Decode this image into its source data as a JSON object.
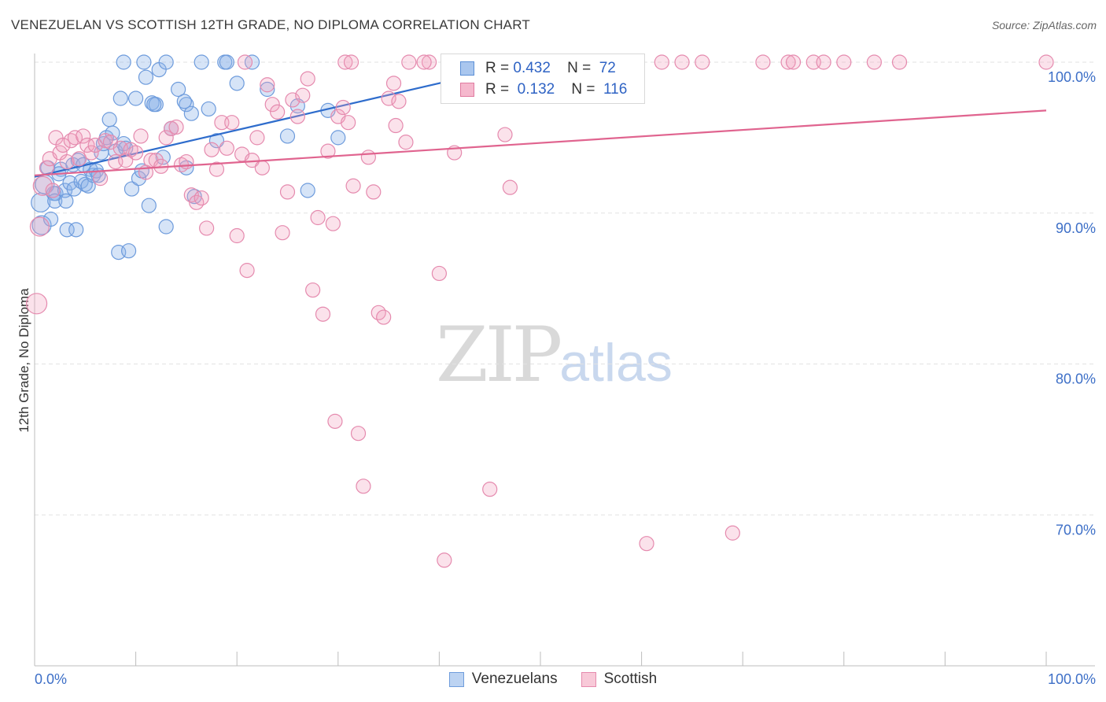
{
  "title": "VENEZUELAN VS SCOTTISH 12TH GRADE, NO DIPLOMA CORRELATION CHART",
  "source": "Source: ZipAtlas.com",
  "watermark": {
    "zip": "ZIP",
    "atlas": "atlas"
  },
  "legend": {
    "venezuelans": {
      "r_label": "R =",
      "r_value": "0.432",
      "n_label": "N =",
      "n_value": "72"
    },
    "scottish": {
      "r_label": "R =",
      "r_value": "0.132",
      "n_label": "N =",
      "n_value": "116"
    }
  },
  "bottom_legend": [
    "Venezuelans",
    "Scottish"
  ],
  "colors": {
    "blue": "#5b8fd6",
    "blue_fill": "#a9c6ee",
    "pink": "#e07aa0",
    "pink_fill": "#f5b8cd",
    "axis_text": "#3d6fc7"
  },
  "chart_data": {
    "type": "scatter",
    "xlabel": "",
    "ylabel": "12th Grade, No Diploma",
    "x_tick_labels": [
      "0.0%",
      "100.0%"
    ],
    "y_tick_labels": [
      "100.0%",
      "90.0%",
      "80.0%",
      "70.0%"
    ],
    "xlim": [
      0,
      100
    ],
    "ylim": [
      60,
      100
    ],
    "series": [
      {
        "name": "Venezuelans",
        "points": [
          [
            0.6,
            90.7
          ],
          [
            0.7,
            89.2
          ],
          [
            1.0,
            91.9
          ],
          [
            1.3,
            93.0
          ],
          [
            1.6,
            89.6
          ],
          [
            1.9,
            91.3
          ],
          [
            2.1,
            91.3
          ],
          [
            2.0,
            90.8
          ],
          [
            2.6,
            92.9
          ],
          [
            2.4,
            92.6
          ],
          [
            3.0,
            91.5
          ],
          [
            3.1,
            90.8
          ],
          [
            3.2,
            88.9
          ],
          [
            3.5,
            92.0
          ],
          [
            3.8,
            93.2
          ],
          [
            3.9,
            91.6
          ],
          [
            4.1,
            88.9
          ],
          [
            4.3,
            93.5
          ],
          [
            4.6,
            92.1
          ],
          [
            4.8,
            93.2
          ],
          [
            5.0,
            91.9
          ],
          [
            5.3,
            91.8
          ],
          [
            5.5,
            92.9
          ],
          [
            5.8,
            92.5
          ],
          [
            6.1,
            92.8
          ],
          [
            6.3,
            92.5
          ],
          [
            6.6,
            94.0
          ],
          [
            6.8,
            94.6
          ],
          [
            7.1,
            95.0
          ],
          [
            7.4,
            96.2
          ],
          [
            7.7,
            95.3
          ],
          [
            8.0,
            94.1
          ],
          [
            8.3,
            87.4
          ],
          [
            8.5,
            97.6
          ],
          [
            8.8,
            94.6
          ],
          [
            9.0,
            94.3
          ],
          [
            9.3,
            87.5
          ],
          [
            9.6,
            91.6
          ],
          [
            10.0,
            97.6
          ],
          [
            10.3,
            92.3
          ],
          [
            10.6,
            92.8
          ],
          [
            11.0,
            99.0
          ],
          [
            11.3,
            90.5
          ],
          [
            11.6,
            97.3
          ],
          [
            12.0,
            97.2
          ],
          [
            12.3,
            99.5
          ],
          [
            13.0,
            89.1
          ],
          [
            13.5,
            95.6
          ],
          [
            14.2,
            98.2
          ],
          [
            15.0,
            97.2
          ],
          [
            15.8,
            91.1
          ],
          [
            16.5,
            100.0
          ],
          [
            17.2,
            96.9
          ],
          [
            18.0,
            94.8
          ],
          [
            18.8,
            100.0
          ],
          [
            20.0,
            98.6
          ],
          [
            21.5,
            100.0
          ],
          [
            23.0,
            98.2
          ],
          [
            25.0,
            95.1
          ],
          [
            26.0,
            97.1
          ],
          [
            27.0,
            91.5
          ],
          [
            29.0,
            96.8
          ],
          [
            30.0,
            95.0
          ],
          [
            8.8,
            100.0
          ],
          [
            10.8,
            100.0
          ],
          [
            13.0,
            100.0
          ],
          [
            15.5,
            96.6
          ],
          [
            19.0,
            100.0
          ],
          [
            14.8,
            97.4
          ],
          [
            11.8,
            97.2
          ],
          [
            12.7,
            93.7
          ],
          [
            15.0,
            93.0
          ]
        ],
        "trend": [
          [
            0,
            92.4
          ],
          [
            49,
            100.0
          ]
        ]
      },
      {
        "name": "Scottish",
        "points": [
          [
            0.2,
            84.0
          ],
          [
            0.5,
            89.1
          ],
          [
            0.8,
            91.8
          ],
          [
            1.2,
            93.0
          ],
          [
            1.5,
            93.6
          ],
          [
            1.8,
            91.5
          ],
          [
            2.1,
            95.0
          ],
          [
            2.5,
            94.0
          ],
          [
            2.8,
            94.5
          ],
          [
            3.2,
            93.4
          ],
          [
            3.6,
            94.8
          ],
          [
            4.0,
            95.0
          ],
          [
            4.4,
            93.6
          ],
          [
            4.8,
            95.1
          ],
          [
            5.2,
            94.5
          ],
          [
            5.6,
            94.0
          ],
          [
            6.0,
            94.5
          ],
          [
            6.5,
            92.3
          ],
          [
            7.0,
            94.8
          ],
          [
            7.5,
            94.7
          ],
          [
            8.0,
            93.4
          ],
          [
            8.5,
            94.3
          ],
          [
            9.0,
            93.5
          ],
          [
            9.5,
            94.2
          ],
          [
            10.0,
            94.0
          ],
          [
            10.5,
            95.1
          ],
          [
            11.0,
            92.7
          ],
          [
            11.5,
            93.5
          ],
          [
            12.0,
            93.5
          ],
          [
            12.5,
            93.1
          ],
          [
            13.0,
            95.0
          ],
          [
            13.5,
            95.6
          ],
          [
            14.0,
            95.7
          ],
          [
            14.5,
            93.2
          ],
          [
            15.0,
            93.4
          ],
          [
            15.5,
            91.2
          ],
          [
            16.0,
            90.7
          ],
          [
            16.5,
            91.0
          ],
          [
            17.0,
            89.0
          ],
          [
            17.5,
            94.2
          ],
          [
            18.0,
            92.9
          ],
          [
            18.5,
            96.0
          ],
          [
            19.0,
            94.3
          ],
          [
            19.5,
            96.0
          ],
          [
            20.0,
            88.5
          ],
          [
            20.5,
            93.9
          ],
          [
            21.0,
            86.2
          ],
          [
            21.5,
            93.5
          ],
          [
            22.0,
            95.0
          ],
          [
            22.5,
            93.0
          ],
          [
            23.0,
            98.5
          ],
          [
            23.5,
            97.2
          ],
          [
            24.0,
            96.7
          ],
          [
            24.5,
            88.7
          ],
          [
            25.0,
            91.4
          ],
          [
            25.5,
            97.5
          ],
          [
            26.0,
            96.4
          ],
          [
            26.5,
            97.8
          ],
          [
            27.0,
            98.9
          ],
          [
            27.5,
            84.9
          ],
          [
            28.0,
            89.7
          ],
          [
            28.5,
            83.3
          ],
          [
            29.0,
            94.1
          ],
          [
            29.5,
            89.3
          ],
          [
            30.0,
            96.4
          ],
          [
            30.5,
            97.0
          ],
          [
            31.0,
            96.0
          ],
          [
            31.5,
            91.8
          ],
          [
            32.0,
            75.4
          ],
          [
            32.5,
            71.9
          ],
          [
            33.0,
            93.7
          ],
          [
            33.5,
            91.4
          ],
          [
            34.0,
            83.4
          ],
          [
            34.5,
            83.1
          ],
          [
            35.0,
            97.6
          ],
          [
            35.5,
            98.6
          ],
          [
            36.0,
            97.4
          ],
          [
            40.0,
            86.0
          ],
          [
            40.5,
            67.0
          ],
          [
            45.0,
            71.7
          ],
          [
            46.5,
            95.2
          ],
          [
            47.0,
            91.7
          ],
          [
            50.0,
            100.0
          ],
          [
            52.0,
            100.0
          ],
          [
            54.0,
            100.0
          ],
          [
            56.0,
            100.0
          ],
          [
            57.0,
            100.0
          ],
          [
            59.0,
            100.0
          ],
          [
            60.5,
            68.1
          ],
          [
            62.0,
            100.0
          ],
          [
            64.0,
            100.0
          ],
          [
            66.0,
            100.0
          ],
          [
            69.0,
            68.8
          ],
          [
            72.0,
            100.0
          ],
          [
            74.5,
            100.0
          ],
          [
            75.0,
            100.0
          ],
          [
            77.0,
            100.0
          ],
          [
            78.0,
            100.0
          ],
          [
            80.0,
            100.0
          ],
          [
            83.0,
            100.0
          ],
          [
            85.5,
            100.0
          ],
          [
            100.0,
            100.0
          ],
          [
            37.0,
            100.0
          ],
          [
            39.0,
            100.0
          ],
          [
            42.0,
            100.0
          ],
          [
            44.0,
            100.0
          ],
          [
            48.0,
            100.0
          ],
          [
            29.7,
            76.2
          ],
          [
            30.7,
            100.0
          ],
          [
            31.3,
            100.0
          ],
          [
            35.7,
            95.8
          ],
          [
            36.7,
            94.7
          ],
          [
            38.5,
            100.0
          ],
          [
            41.5,
            94.0
          ],
          [
            43.0,
            100.0
          ],
          [
            20.8,
            100.0
          ]
        ],
        "trend": [
          [
            0,
            92.5
          ],
          [
            100,
            96.8
          ]
        ]
      }
    ],
    "grid": true
  }
}
